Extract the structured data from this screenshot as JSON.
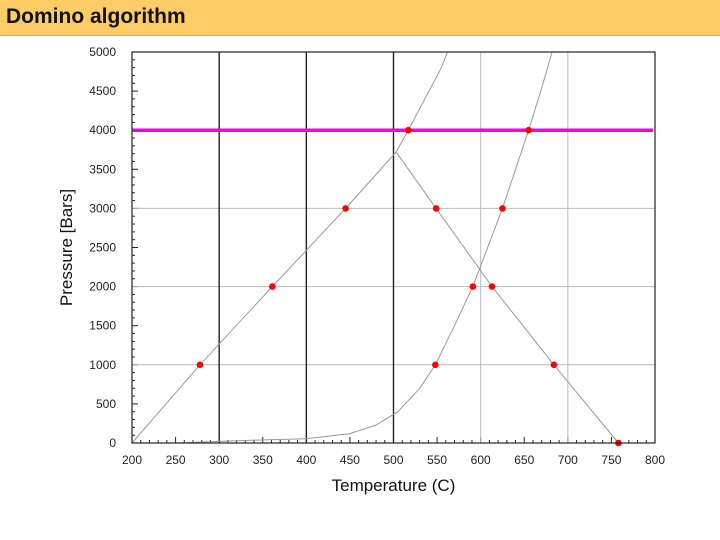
{
  "header": {
    "title": "Domino algorithm"
  },
  "colors": {
    "title_bar": "#ffcc66",
    "highlight_line": "#ee00ee",
    "points": "#ff0000",
    "curves": "#999999",
    "major_grid": "#222222",
    "minor_grid": "#bbbbbb"
  },
  "chart_data": {
    "type": "scatter",
    "title": "",
    "xlabel": "Temperature (C)",
    "ylabel": "Pressure [Bars]",
    "xlim": [
      200,
      800
    ],
    "ylim": [
      0,
      5000
    ],
    "x_ticks": [
      200,
      250,
      300,
      350,
      400,
      450,
      500,
      550,
      600,
      650,
      700,
      750,
      800
    ],
    "y_ticks": [
      0,
      500,
      1000,
      1500,
      2000,
      2500,
      3000,
      3500,
      4000,
      4500,
      5000
    ],
    "x_major_grid": [
      300,
      400,
      500
    ],
    "x_minor_grid": [
      600,
      700
    ],
    "y_grid": [
      1000,
      2000,
      3000
    ],
    "highlight_line": {
      "y": 4000
    },
    "curves": [
      {
        "points": [
          [
            200,
            0
          ],
          [
            278,
            1000
          ],
          [
            361,
            2000
          ],
          [
            445,
            3000
          ],
          [
            503,
            3720
          ],
          [
            517,
            4000
          ],
          [
            555,
            4800
          ],
          [
            562,
            5000
          ]
        ]
      },
      {
        "points": [
          [
            503,
            3720
          ],
          [
            549,
            3000
          ],
          [
            613,
            2000
          ],
          [
            684,
            1000
          ],
          [
            758,
            0
          ]
        ]
      },
      {
        "points": [
          [
            250,
            0
          ],
          [
            300,
            20
          ],
          [
            350,
            40
          ],
          [
            400,
            55
          ],
          [
            450,
            120
          ],
          [
            480,
            230
          ],
          [
            505,
            400
          ],
          [
            530,
            700
          ],
          [
            548,
            1000
          ],
          [
            570,
            1500
          ],
          [
            591,
            2000
          ],
          [
            625,
            3000
          ],
          [
            655,
            4000
          ],
          [
            669,
            4500
          ],
          [
            682,
            5000
          ]
        ]
      }
    ],
    "series": [
      {
        "values": [
          [
            278,
            1000
          ],
          [
            361,
            2000
          ],
          [
            445,
            3000
          ],
          [
            517,
            4000
          ],
          [
            549,
            3000
          ],
          [
            548,
            1000
          ],
          [
            591,
            2000
          ],
          [
            613,
            2000
          ],
          [
            625,
            3000
          ],
          [
            655,
            4000
          ],
          [
            684,
            1000
          ],
          [
            758,
            0
          ]
        ]
      }
    ]
  }
}
